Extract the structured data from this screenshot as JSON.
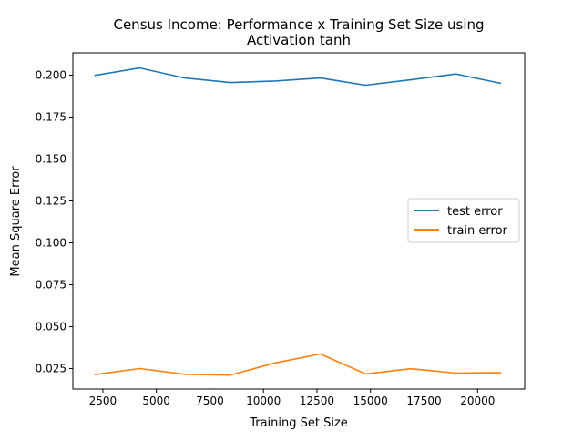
{
  "chart_data": {
    "type": "line",
    "title_line1": "Census Income: Performance x Training Set Size using",
    "title_line2": "Activation tanh",
    "xlabel": "Training Set Size",
    "ylabel": "Mean Square Error",
    "xlim": [
      1100,
      22200
    ],
    "ylim": [
      0.0128,
      0.2133
    ],
    "xticks": [
      2500,
      5000,
      7500,
      10000,
      12500,
      15000,
      17500,
      20000
    ],
    "xtick_labels": [
      "2500",
      "5000",
      "7500",
      "10000",
      "12500",
      "15000",
      "17500",
      "20000"
    ],
    "yticks": [
      0.025,
      0.05,
      0.075,
      0.1,
      0.125,
      0.15,
      0.175,
      0.2
    ],
    "ytick_labels": [
      "0.025",
      "0.050",
      "0.075",
      "0.100",
      "0.125",
      "0.150",
      "0.175",
      "0.200"
    ],
    "legend_position": "center-right",
    "series": [
      {
        "name": "test error",
        "color": "#1f77b4",
        "x": [
          2110,
          4220,
          6330,
          8440,
          10550,
          12660,
          14770,
          16880,
          18990,
          21100
        ],
        "y": [
          0.1998,
          0.2043,
          0.1983,
          0.1956,
          0.1965,
          0.1983,
          0.194,
          0.1972,
          0.2007,
          0.1951
        ]
      },
      {
        "name": "train error",
        "color": "#ff7f0e",
        "x": [
          2110,
          4220,
          6330,
          8440,
          10550,
          12660,
          14770,
          16880,
          18990,
          21100
        ],
        "y": [
          0.0214,
          0.025,
          0.0216,
          0.0211,
          0.0284,
          0.0337,
          0.0218,
          0.0249,
          0.0223,
          0.0225
        ]
      }
    ]
  }
}
